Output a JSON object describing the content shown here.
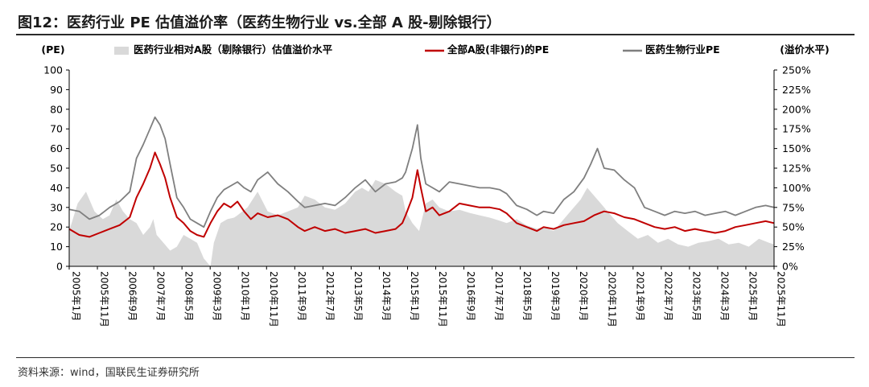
{
  "title": "图12：医药行业 PE 估值溢价率（医药生物行业 vs.全部 A 股-剔除银行）",
  "source": "资料来源：wind，国联民生证券研究所",
  "chart_data": {
    "type": "line",
    "left_axis_unit": "(PE)",
    "right_axis_unit": "(溢价水平)",
    "left_ticks": [
      "0",
      "10",
      "20",
      "30",
      "40",
      "50",
      "60",
      "70",
      "80",
      "90",
      "100"
    ],
    "right_ticks": [
      "0%",
      "25%",
      "50%",
      "75%",
      "100%",
      "125%",
      "150%",
      "175%",
      "200%",
      "225%",
      "250%"
    ],
    "ylim_left": [
      0,
      100
    ],
    "ylim_right": [
      0,
      250
    ],
    "x_tick_labels": [
      "2005年1月",
      "2005年11月",
      "2006年9月",
      "2007年7月",
      "2008年5月",
      "2009年3月",
      "2010年1月",
      "2010年11月",
      "2011年9月",
      "2012年7月",
      "2013年5月",
      "2014年3月",
      "2015年1月",
      "2015年11月",
      "2016年9月",
      "2017年7月",
      "2018年5月",
      "2019年3月",
      "2020年1月",
      "2020年11月",
      "2021年9月",
      "2022年7月",
      "2023年5月",
      "2024年3月",
      "2025年1月",
      "2025年11月"
    ],
    "legend_position": "top",
    "series": [
      {
        "name": "医药行业相对A股（剔除银行）估值溢价水平",
        "kind": "area",
        "axis": "right",
        "color": "#d9d9d9",
        "x": [
          2005.0,
          2005.25,
          2005.5,
          2005.75,
          2006.0,
          2006.2,
          2006.4,
          2006.6,
          2006.8,
          2007.0,
          2007.2,
          2007.4,
          2007.5,
          2007.6,
          2007.8,
          2008.0,
          2008.2,
          2008.4,
          2008.6,
          2008.8,
          2009.0,
          2009.1,
          2009.2,
          2009.3,
          2009.5,
          2009.7,
          2009.9,
          2010.0,
          2010.3,
          2010.6,
          2010.9,
          2011.2,
          2011.5,
          2011.8,
          2012.0,
          2012.3,
          2012.6,
          2012.9,
          2013.2,
          2013.5,
          2013.7,
          2013.9,
          2014.1,
          2014.4,
          2014.7,
          2014.9,
          2015.0,
          2015.2,
          2015.4,
          2015.6,
          2015.8,
          2016.0,
          2016.3,
          2016.6,
          2016.9,
          2017.2,
          2017.5,
          2017.8,
          2018.0,
          2018.3,
          2018.6,
          2018.9,
          2019.1,
          2019.4,
          2019.7,
          2020.0,
          2020.2,
          2020.4,
          2020.6,
          2020.8,
          2021.0,
          2021.3,
          2021.6,
          2021.9,
          2022.2,
          2022.5,
          2022.8,
          2023.1,
          2023.4,
          2023.7,
          2024.0,
          2024.3,
          2024.6,
          2024.9,
          2025.2,
          2025.5,
          2025.8,
          2025.95
        ],
        "values": [
          45,
          80,
          95,
          70,
          60,
          65,
          85,
          70,
          60,
          55,
          40,
          50,
          60,
          40,
          30,
          20,
          25,
          40,
          35,
          30,
          10,
          5,
          0,
          30,
          55,
          60,
          62,
          65,
          75,
          95,
          70,
          65,
          70,
          75,
          90,
          85,
          75,
          72,
          80,
          95,
          100,
          95,
          110,
          105,
          95,
          90,
          70,
          55,
          45,
          80,
          85,
          75,
          70,
          72,
          68,
          65,
          62,
          58,
          55,
          60,
          52,
          48,
          50,
          45,
          60,
          75,
          85,
          100,
          90,
          80,
          70,
          55,
          45,
          35,
          40,
          30,
          35,
          28,
          25,
          30,
          32,
          35,
          28,
          30,
          25,
          35,
          30,
          28
        ]
      },
      {
        "name": "全部A股(非银行)的PE",
        "kind": "line",
        "axis": "left",
        "color": "#c00000",
        "x": [
          2005.0,
          2005.3,
          2005.6,
          2005.9,
          2006.2,
          2006.5,
          2006.8,
          2007.0,
          2007.2,
          2007.4,
          2007.55,
          2007.7,
          2007.85,
          2008.0,
          2008.2,
          2008.4,
          2008.6,
          2008.8,
          2009.0,
          2009.2,
          2009.4,
          2009.6,
          2009.8,
          2010.0,
          2010.2,
          2010.4,
          2010.6,
          2010.9,
          2011.2,
          2011.5,
          2011.8,
          2012.0,
          2012.3,
          2012.6,
          2012.9,
          2013.2,
          2013.5,
          2013.8,
          2014.1,
          2014.4,
          2014.7,
          2014.9,
          2015.0,
          2015.2,
          2015.35,
          2015.45,
          2015.6,
          2015.8,
          2016.0,
          2016.3,
          2016.6,
          2016.9,
          2017.2,
          2017.5,
          2017.8,
          2018.0,
          2018.3,
          2018.6,
          2018.9,
          2019.1,
          2019.4,
          2019.7,
          2020.0,
          2020.3,
          2020.6,
          2020.9,
          2021.2,
          2021.5,
          2021.8,
          2022.1,
          2022.4,
          2022.7,
          2023.0,
          2023.3,
          2023.6,
          2023.9,
          2024.2,
          2024.5,
          2024.8,
          2025.1,
          2025.4,
          2025.7,
          2025.95
        ],
        "values": [
          19,
          16,
          15,
          17,
          19,
          21,
          25,
          35,
          42,
          50,
          58,
          52,
          45,
          35,
          25,
          22,
          18,
          16,
          15,
          22,
          28,
          32,
          30,
          33,
          28,
          24,
          27,
          25,
          26,
          24,
          20,
          18,
          20,
          18,
          19,
          17,
          18,
          19,
          17,
          18,
          19,
          22,
          26,
          35,
          49,
          40,
          28,
          30,
          26,
          28,
          32,
          31,
          30,
          30,
          29,
          27,
          22,
          20,
          18,
          20,
          19,
          21,
          22,
          23,
          26,
          28,
          27,
          25,
          24,
          22,
          20,
          19,
          20,
          18,
          19,
          18,
          17,
          18,
          20,
          21,
          22,
          23,
          22
        ]
      },
      {
        "name": "医药生物行业PE",
        "kind": "line",
        "axis": "left",
        "color": "#7f7f7f",
        "x": [
          2005.0,
          2005.3,
          2005.6,
          2005.9,
          2006.2,
          2006.5,
          2006.8,
          2007.0,
          2007.2,
          2007.4,
          2007.55,
          2007.7,
          2007.85,
          2008.0,
          2008.2,
          2008.4,
          2008.6,
          2008.8,
          2009.0,
          2009.2,
          2009.4,
          2009.6,
          2009.8,
          2010.0,
          2010.2,
          2010.4,
          2010.6,
          2010.9,
          2011.2,
          2011.5,
          2011.8,
          2012.0,
          2012.3,
          2012.6,
          2012.9,
          2013.2,
          2013.5,
          2013.8,
          2014.1,
          2014.4,
          2014.7,
          2014.9,
          2015.0,
          2015.2,
          2015.35,
          2015.45,
          2015.6,
          2015.8,
          2016.0,
          2016.3,
          2016.6,
          2016.9,
          2017.2,
          2017.5,
          2017.8,
          2018.0,
          2018.3,
          2018.6,
          2018.9,
          2019.1,
          2019.4,
          2019.7,
          2020.0,
          2020.3,
          2020.5,
          2020.7,
          2020.9,
          2021.2,
          2021.5,
          2021.8,
          2022.1,
          2022.4,
          2022.7,
          2023.0,
          2023.3,
          2023.6,
          2023.9,
          2024.2,
          2024.5,
          2024.8,
          2025.1,
          2025.4,
          2025.7,
          2025.95
        ],
        "values": [
          29,
          28,
          24,
          26,
          30,
          33,
          38,
          55,
          62,
          70,
          76,
          72,
          65,
          52,
          35,
          30,
          24,
          22,
          20,
          28,
          35,
          39,
          41,
          43,
          40,
          38,
          44,
          48,
          42,
          38,
          33,
          30,
          31,
          32,
          31,
          35,
          40,
          44,
          38,
          42,
          43,
          45,
          48,
          60,
          72,
          55,
          42,
          40,
          38,
          43,
          42,
          41,
          40,
          40,
          39,
          37,
          31,
          29,
          26,
          28,
          27,
          34,
          38,
          45,
          52,
          60,
          50,
          49,
          44,
          40,
          30,
          28,
          26,
          28,
          27,
          28,
          26,
          27,
          28,
          26,
          28,
          30,
          31,
          30
        ]
      }
    ]
  }
}
